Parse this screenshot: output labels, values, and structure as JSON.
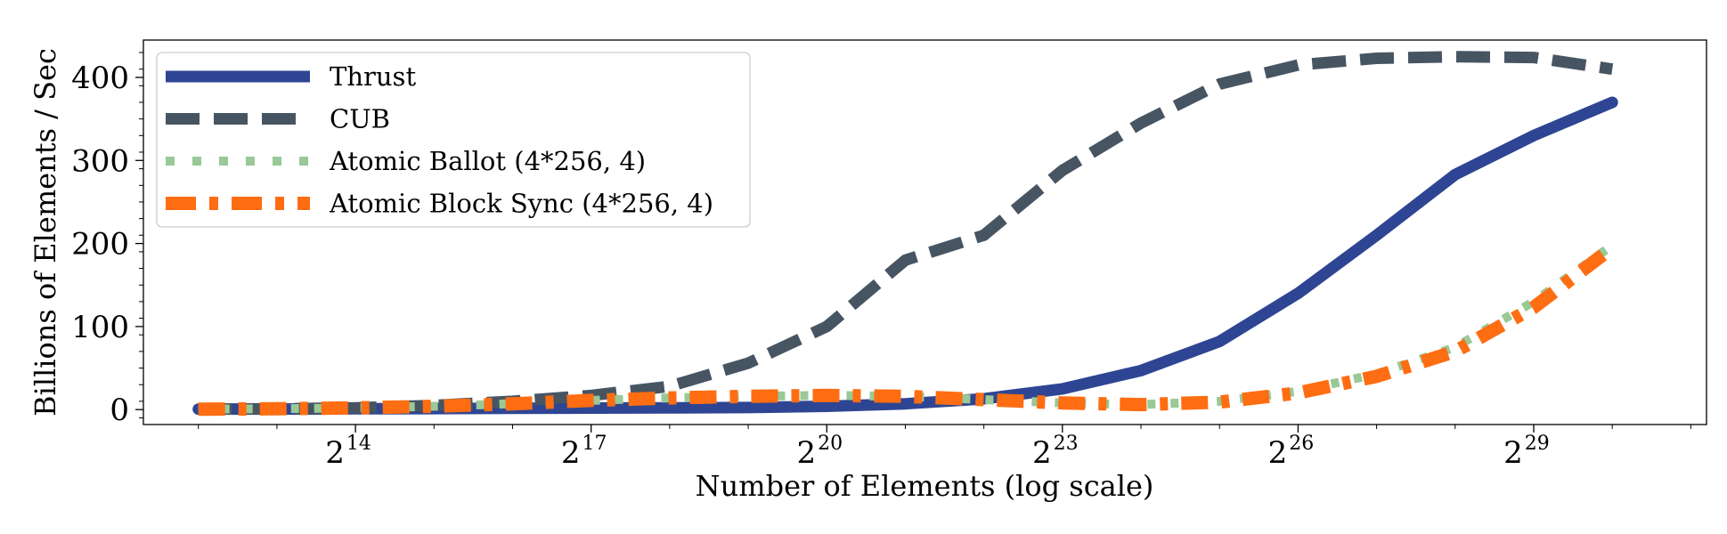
{
  "chart_data": {
    "type": "line",
    "xscale": "log2",
    "xlabel": "Number of Elements (log scale)",
    "ylabel": "Billions of Elements / Sec",
    "xlim": [
      11.3,
      31.2
    ],
    "ylim": [
      -18,
      445
    ],
    "xticks": [
      {
        "exp": 14,
        "base": "2",
        "sup": "14"
      },
      {
        "exp": 17,
        "base": "2",
        "sup": "17"
      },
      {
        "exp": 20,
        "base": "2",
        "sup": "20"
      },
      {
        "exp": 23,
        "base": "2",
        "sup": "23"
      },
      {
        "exp": 26,
        "base": "2",
        "sup": "26"
      },
      {
        "exp": 29,
        "base": "2",
        "sup": "29"
      }
    ],
    "yticks": [
      {
        "value": 0,
        "label": "0"
      },
      {
        "value": 100,
        "label": "100"
      },
      {
        "value": 200,
        "label": "200"
      },
      {
        "value": 300,
        "label": "300"
      },
      {
        "value": 400,
        "label": "400"
      }
    ],
    "x_exponents": [
      12,
      13,
      14,
      15,
      16,
      17,
      18,
      19,
      20,
      21,
      22,
      23,
      24,
      25,
      26,
      27,
      28,
      29,
      30
    ],
    "legend_position": "upper-left",
    "series": [
      {
        "name": "Thrust",
        "color": "#2e4593",
        "style": "solid",
        "values": [
          0.5,
          0.7,
          1,
          1.2,
          1.5,
          1.8,
          2,
          2.5,
          4,
          7,
          13,
          25,
          47,
          82,
          140,
          210,
          283,
          330,
          370
        ]
      },
      {
        "name": "CUB",
        "color": "#475563",
        "style": "dashed",
        "values": [
          0.5,
          1,
          2,
          5,
          10,
          17,
          28,
          56,
          100,
          180,
          210,
          288,
          345,
          392,
          415,
          423,
          425,
          424,
          410
        ]
      },
      {
        "name": "Atomic Ballot (4*256, 4)",
        "color": "#99c997",
        "style": "dotted",
        "values": [
          0.5,
          1,
          2,
          4,
          7,
          11,
          14,
          16,
          17,
          16,
          12,
          8,
          6,
          10,
          22,
          43,
          75,
          130,
          198
        ]
      },
      {
        "name": "Atomic Block Sync (4*256, 4)",
        "color": "#ff6d12",
        "style": "dashdot",
        "values": [
          0.5,
          1,
          2,
          4,
          7,
          11,
          14,
          16,
          17,
          16,
          12,
          8,
          6,
          9,
          20,
          40,
          70,
          123,
          195
        ]
      }
    ]
  }
}
